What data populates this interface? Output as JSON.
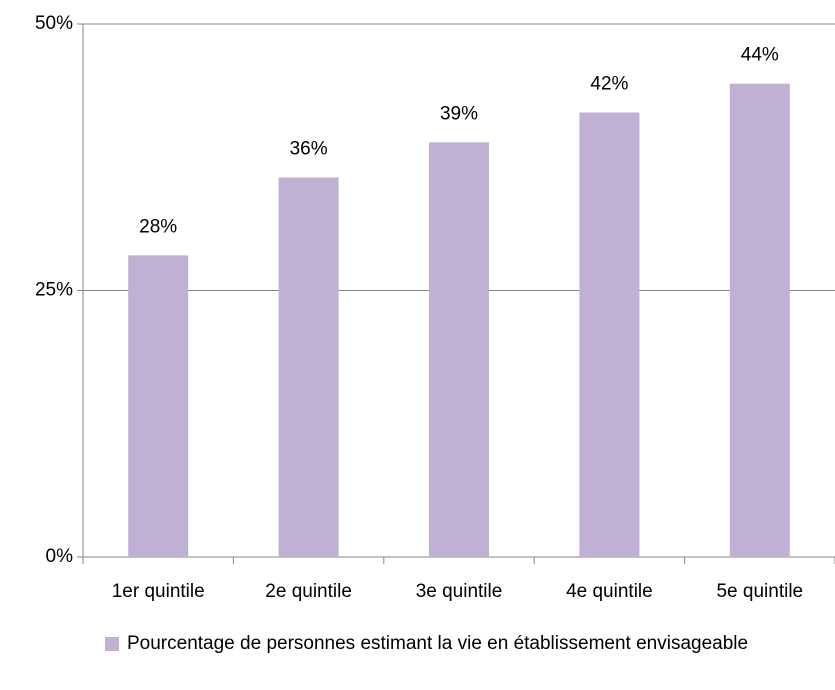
{
  "chart_data": {
    "type": "bar",
    "categories": [
      "1er quintile",
      "2e quintile",
      "3e quintile",
      "4e quintile",
      "5e quintile"
    ],
    "series": [
      {
        "name": "Pourcentage de personnes estimant la vie en établissement envisageable",
        "color": "#c0b1d4",
        "values": [
          28.3,
          35.6,
          38.9,
          41.7,
          44.4
        ],
        "value_labels": [
          "28%",
          "36%",
          "39%",
          "42%",
          "44%"
        ]
      }
    ],
    "ylim": [
      0,
      50
    ],
    "yticks": [
      {
        "value": 0,
        "label": "0%"
      },
      {
        "value": 25,
        "label": "25%"
      },
      {
        "value": 50,
        "label": "50%"
      }
    ],
    "grid": true,
    "legend": "bottom"
  }
}
